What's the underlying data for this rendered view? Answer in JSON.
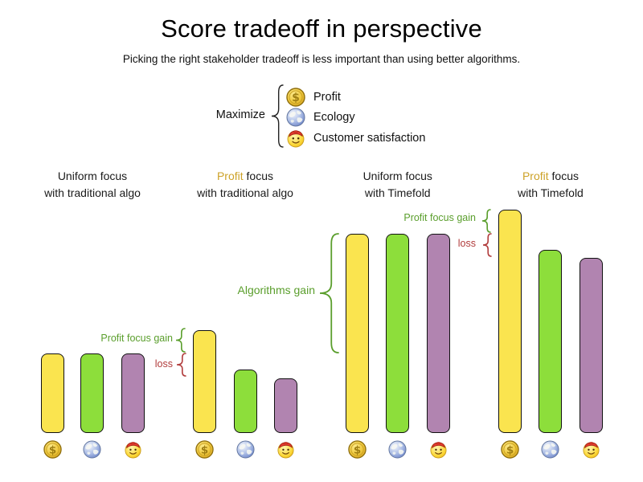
{
  "title": "Score tradeoff in perspective",
  "subtitle": "Picking the right stakeholder tradeoff is less important than using better algorithms.",
  "legend": {
    "label": "Maximize",
    "items": [
      {
        "label": "Profit",
        "icon": "coin-icon"
      },
      {
        "label": "Ecology",
        "icon": "globe-icon"
      },
      {
        "label": "Customer satisfaction",
        "icon": "smiley-icon"
      }
    ]
  },
  "colors": {
    "profit_bar": "#FAE44F",
    "ecology_bar": "#8DDE3B",
    "customer_bar": "#B184B0",
    "profit_accent_text": "#CDA228",
    "gain_annotation": "#5A9E2C",
    "loss_annotation": "#B13C3C",
    "bar_border": "#111111"
  },
  "chart_data": {
    "type": "bar",
    "title": "Score tradeoff in perspective",
    "subtitle": "Picking the right stakeholder tradeoff is less important than using better algorithms.",
    "value_unit": "relative score (no numeric axis shown; values are relative bar heights in px)",
    "stakeholders": [
      {
        "name": "Profit",
        "icon": "coin-icon",
        "color": "#FAE44F"
      },
      {
        "name": "Ecology",
        "icon": "globe-icon",
        "color": "#8DDE3B"
      },
      {
        "name": "Customer satisfaction",
        "icon": "smiley-icon",
        "color": "#B184B0"
      }
    ],
    "groups": [
      {
        "label_accent": "",
        "label_rest": "Uniform focus",
        "label_line2": "with traditional algo",
        "values": [
          99,
          99,
          99
        ]
      },
      {
        "label_accent": "Profit",
        "label_rest": " focus",
        "label_line2": "with traditional algo",
        "values": [
          128,
          79,
          68
        ]
      },
      {
        "label_accent": "",
        "label_rest": "Uniform focus",
        "label_line2": "with Timefold",
        "values": [
          248,
          248,
          248
        ]
      },
      {
        "label_accent": "Profit",
        "label_rest": " focus",
        "label_line2": "with Timefold",
        "values": [
          278,
          228,
          218
        ]
      }
    ],
    "annotations": [
      {
        "id": "g2-gain",
        "label": "Profit focus gain",
        "kind": "gain"
      },
      {
        "id": "g2-loss",
        "label": "loss",
        "kind": "loss"
      },
      {
        "id": "algo-gain",
        "label": "Algorithms gain",
        "kind": "gain"
      },
      {
        "id": "g4-gain",
        "label": "Profit focus gain",
        "kind": "gain"
      },
      {
        "id": "g4-loss",
        "label": "loss",
        "kind": "loss"
      }
    ]
  }
}
